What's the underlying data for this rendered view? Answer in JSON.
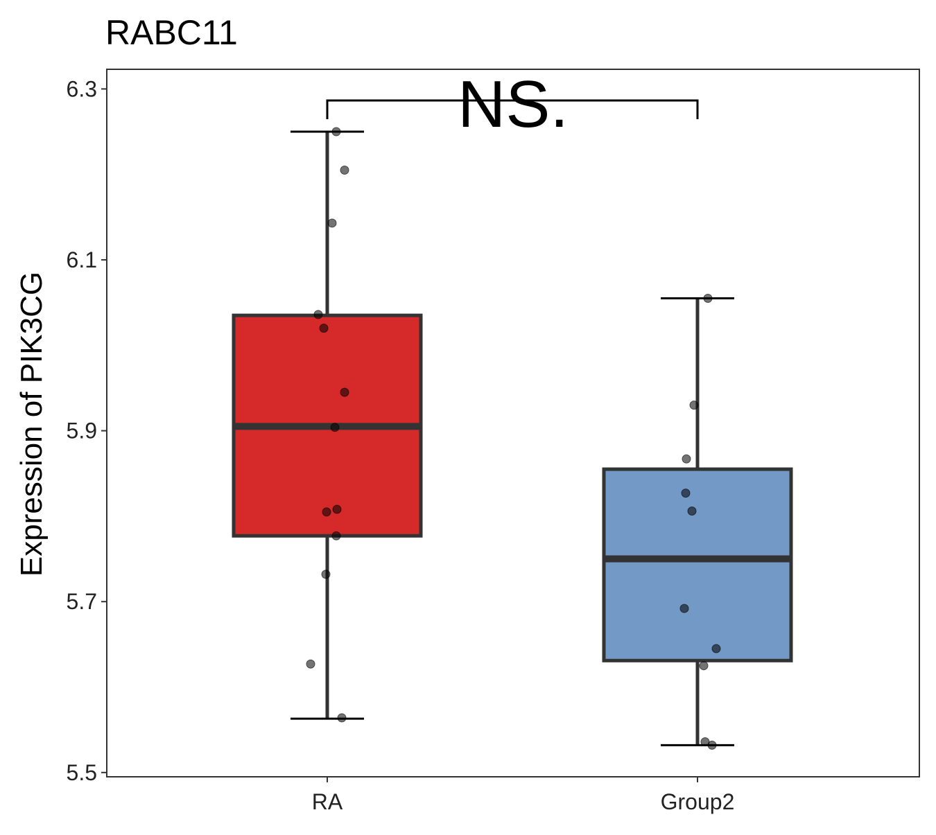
{
  "chart_data": {
    "type": "boxplot",
    "title": "RABC11",
    "xlabel": "",
    "ylabel": "Expression of PIK3CG",
    "ylim": [
      5.495,
      6.323
    ],
    "yticks": [
      "5.5",
      "5.7",
      "5.9",
      "6.1",
      "6.3"
    ],
    "ytick_values": [
      5.5,
      5.7,
      5.9,
      6.1,
      6.3
    ],
    "categories": [
      "RA",
      "Group2"
    ],
    "grid": false,
    "legend": "none",
    "significance": {
      "label": "NS.",
      "from": "RA",
      "to": "Group2"
    },
    "series": [
      {
        "name": "RA",
        "color": "#d62a2a",
        "whisker_low": 5.563,
        "q1": 5.777,
        "median": 5.905,
        "q3": 6.035,
        "whisker_high": 6.25,
        "points": [
          6.25,
          6.205,
          6.143,
          6.036,
          6.02,
          5.945,
          5.904,
          5.808,
          5.805,
          5.777,
          5.732,
          5.627,
          5.564
        ]
      },
      {
        "name": "Group2",
        "color": "#7399c6",
        "whisker_low": 5.532,
        "q1": 5.631,
        "median": 5.75,
        "q3": 5.855,
        "whisker_high": 6.055,
        "points": [
          6.055,
          5.93,
          5.867,
          5.827,
          5.806,
          5.692,
          5.645,
          5.625,
          5.536,
          5.532
        ]
      }
    ]
  }
}
